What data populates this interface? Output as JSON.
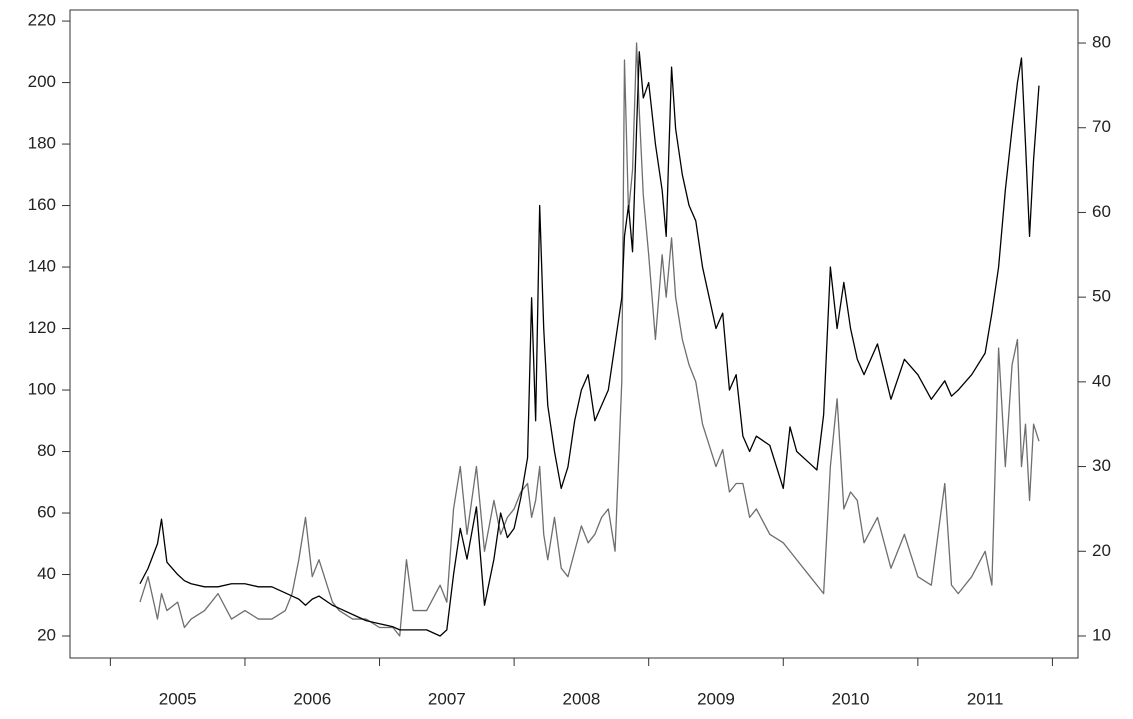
{
  "chart_data": {
    "type": "line",
    "x": [
      2005.22,
      2005.28,
      2005.35,
      2005.38,
      2005.42,
      2005.5,
      2005.55,
      2005.6,
      2005.7,
      2005.8,
      2005.9,
      2006.0,
      2006.1,
      2006.2,
      2006.3,
      2006.35,
      2006.4,
      2006.45,
      2006.5,
      2006.55,
      2006.65,
      2006.7,
      2006.8,
      2006.9,
      2007.0,
      2007.1,
      2007.15,
      2007.2,
      2007.25,
      2007.35,
      2007.45,
      2007.5,
      2007.55,
      2007.6,
      2007.65,
      2007.72,
      2007.78,
      2007.85,
      2007.9,
      2007.95,
      2008.0,
      2008.05,
      2008.1,
      2008.13,
      2008.16,
      2008.19,
      2008.22,
      2008.25,
      2008.3,
      2008.35,
      2008.4,
      2008.45,
      2008.5,
      2008.55,
      2008.6,
      2008.65,
      2008.7,
      2008.75,
      2008.8,
      2008.82,
      2008.85,
      2008.88,
      2008.91,
      2008.93,
      2008.96,
      2009.0,
      2009.05,
      2009.1,
      2009.13,
      2009.17,
      2009.2,
      2009.25,
      2009.3,
      2009.35,
      2009.4,
      2009.5,
      2009.55,
      2009.6,
      2009.65,
      2009.7,
      2009.75,
      2009.8,
      2009.9,
      2010.0,
      2010.05,
      2010.1,
      2010.2,
      2010.25,
      2010.3,
      2010.35,
      2010.4,
      2010.45,
      2010.5,
      2010.55,
      2010.6,
      2010.7,
      2010.8,
      2010.9,
      2011.0,
      2011.1,
      2011.2,
      2011.25,
      2011.3,
      2011.4,
      2011.5,
      2011.55,
      2011.6,
      2011.65,
      2011.7,
      2011.74,
      2011.77,
      2011.8,
      2011.83,
      2011.86,
      2011.9
    ],
    "series": [
      {
        "color": "#000000",
        "axis": "y",
        "values": [
          37,
          42,
          50,
          58,
          44,
          40,
          38,
          37,
          36,
          36,
          37,
          37,
          36,
          36,
          34,
          33,
          32,
          30,
          32,
          33,
          30,
          29,
          27,
          25,
          24,
          23,
          22,
          22,
          22,
          22,
          20,
          22,
          40,
          55,
          45,
          62,
          30,
          45,
          60,
          52,
          55,
          65,
          78,
          130,
          90,
          160,
          120,
          95,
          80,
          68,
          75,
          90,
          100,
          105,
          90,
          95,
          100,
          115,
          130,
          150,
          160,
          145,
          185,
          210,
          195,
          200,
          180,
          165,
          150,
          205,
          185,
          170,
          160,
          155,
          140,
          120,
          125,
          100,
          105,
          85,
          80,
          85,
          82,
          68,
          88,
          80,
          76,
          74,
          92,
          140,
          120,
          135,
          120,
          110,
          105,
          115,
          97,
          110,
          105,
          97,
          103,
          98,
          100,
          105,
          112,
          125,
          140,
          165,
          185,
          200,
          208,
          180,
          150,
          175,
          199
        ]
      },
      {
        "color": "#6e6e6e",
        "axis": "y2",
        "values": [
          14,
          17,
          12,
          15,
          13,
          14,
          11,
          12,
          13,
          15,
          12,
          13,
          12,
          12,
          13,
          15,
          19,
          24,
          17,
          19,
          14,
          13,
          12,
          12,
          11,
          11,
          10,
          19,
          13,
          13,
          16,
          14,
          25,
          30,
          22,
          30,
          20,
          26,
          22,
          24,
          25,
          27,
          28,
          24,
          26,
          30,
          22,
          19,
          24,
          18,
          17,
          20,
          23,
          21,
          22,
          24,
          25,
          20,
          40,
          78,
          60,
          65,
          80,
          72,
          62,
          55,
          45,
          55,
          50,
          57,
          50,
          45,
          42,
          40,
          35,
          30,
          32,
          27,
          28,
          28,
          24,
          25,
          22,
          21,
          20,
          19,
          17,
          16,
          15,
          30,
          38,
          25,
          27,
          26,
          21,
          24,
          18,
          22,
          17,
          16,
          28,
          16,
          15,
          17,
          20,
          16,
          44,
          30,
          42,
          45,
          30,
          35,
          26,
          35,
          33
        ]
      }
    ],
    "xlim": [
      2004.7,
      2012.19
    ],
    "xticks": [
      2005,
      2006,
      2007,
      2008,
      2009,
      2010,
      2011,
      2012
    ],
    "xlabels": [
      {
        "value": 2005.5,
        "label": "2005"
      },
      {
        "value": 2006.5,
        "label": "2006"
      },
      {
        "value": 2007.5,
        "label": "2007"
      },
      {
        "value": 2008.5,
        "label": "2008"
      },
      {
        "value": 2009.5,
        "label": "2009"
      },
      {
        "value": 2010.5,
        "label": "2010"
      },
      {
        "value": 2011.5,
        "label": "2011"
      }
    ],
    "ylim": [
      12.85,
      223.6
    ],
    "yticks": [
      20,
      40,
      60,
      80,
      100,
      120,
      140,
      160,
      180,
      200,
      220
    ],
    "y2lim": [
      7.4,
      83.9
    ],
    "y2ticks": [
      10,
      20,
      30,
      40,
      50,
      60,
      70,
      80
    ]
  }
}
